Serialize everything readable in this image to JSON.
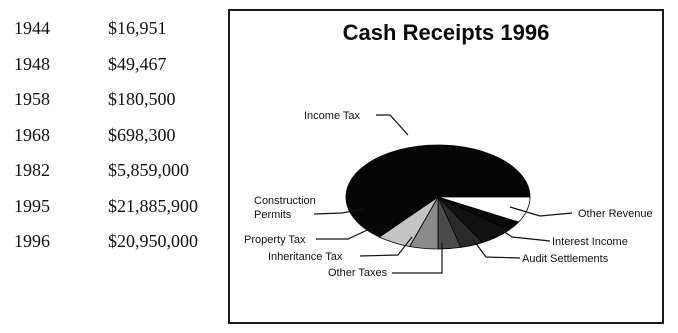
{
  "history": {
    "rows": [
      {
        "year": "1944",
        "amount": "$16,951"
      },
      {
        "year": "1948",
        "amount": "$49,467"
      },
      {
        "year": "1958",
        "amount": "$180,500"
      },
      {
        "year": "1968",
        "amount": "$698,300"
      },
      {
        "year": "1982",
        "amount": "$5,859,000"
      },
      {
        "year": "1995",
        "amount": "$21,885,900"
      },
      {
        "year": "1996",
        "amount": "$20,950,000"
      }
    ]
  },
  "chart_data": {
    "type": "pie",
    "title": "Cash Receipts 1996",
    "slices": [
      {
        "label": "Income Tax",
        "value": 64,
        "color": "#050505"
      },
      {
        "label": "Other Revenue",
        "value": 8,
        "color": "#ffffff"
      },
      {
        "label": "Interest Income",
        "value": 3,
        "color": "#0a0a0a"
      },
      {
        "label": "Audit Settlements",
        "value": 6,
        "color": "#111111"
      },
      {
        "label": "Other Taxes",
        "value": 4,
        "color": "#2a2a2a"
      },
      {
        "label": "Inheritance Tax",
        "value": 4,
        "color": "#4a4a4a"
      },
      {
        "label": "Property Tax",
        "value": 5,
        "color": "#8a8a8a"
      },
      {
        "label": "Construction Permits",
        "value": 6,
        "color": "#c4c4c4"
      }
    ]
  }
}
